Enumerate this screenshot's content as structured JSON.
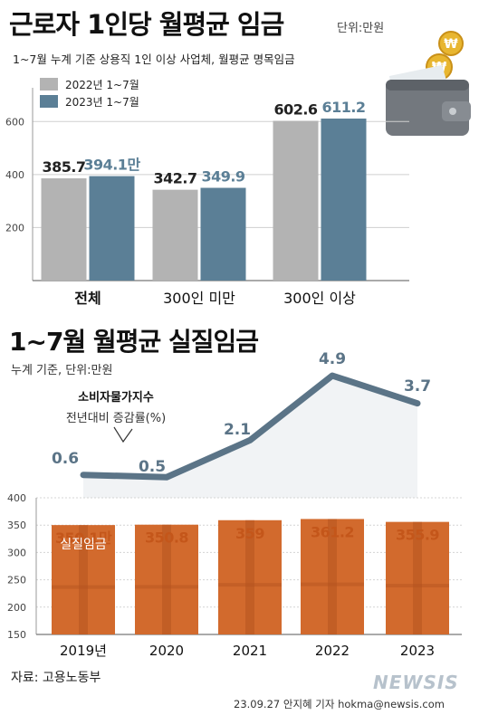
{
  "header": {
    "title": "근로자 1인당 월평균 임금",
    "unit": "단위:만원",
    "subtitle": "1~7월 누계 기준 상용직 1인 이상 사업체, 월평균 명목임금"
  },
  "section2": {
    "title": "1~7월 월평균 실질임금",
    "subtitle": "누계 기준, 단위:만원",
    "cpi_label_1": "소비자물가지수",
    "cpi_label_2": "전년대비 증감률(%)",
    "bar_label": "실질임금"
  },
  "footer": {
    "source": "자료: 고용노동부",
    "credit": "23.09.27 안지혜 기자 hokma@newsis.com",
    "logo": "NEWSIS"
  },
  "colors": {
    "series_2022": "#b3b3b3",
    "series_2023": "#5b7f96",
    "real_wage_bar": "#d26a2d",
    "real_wage_stripe": "#b4531f",
    "real_wage_value": "#c4561a",
    "cpi_line": "#5b7487"
  },
  "icons": [
    "wallet-icon",
    "won-coin-icon"
  ],
  "chart_data": [
    {
      "type": "bar",
      "title": "근로자 1인당 월평균 임금",
      "categories": [
        "전체",
        "300인 미만",
        "300인 이상"
      ],
      "series": [
        {
          "name": "2022년 1~7월",
          "values": [
            385.7,
            342.7,
            602.6
          ],
          "labels": [
            "385.7",
            "342.7",
            "602.6"
          ]
        },
        {
          "name": "2023년 1~7월",
          "values": [
            394.1,
            349.9,
            611.2
          ],
          "labels": [
            "394.1만",
            "349.9",
            "611.2"
          ]
        }
      ],
      "ylim": [
        0,
        700
      ],
      "yticks": [
        "200",
        "400",
        "600"
      ],
      "legend": "top-left"
    },
    {
      "type": "bar",
      "title": "1~7월 월평균 실질임금",
      "categories": [
        "2019년",
        "2020",
        "2021",
        "2022",
        "2023"
      ],
      "values": [
        350.1,
        350.8,
        359,
        361.2,
        355.9
      ],
      "labels": [
        "350.1만",
        "350.8",
        "359",
        "361.2",
        "355.9"
      ],
      "ylim": [
        150,
        400
      ],
      "yticks": [
        "400",
        "350",
        "300",
        "250",
        "200",
        "150"
      ]
    },
    {
      "type": "line",
      "name": "소비자물가지수 전년대비 증감률(%)",
      "x": [
        "2019",
        "2020",
        "2021",
        "2022",
        "2023"
      ],
      "values": [
        0.6,
        0.5,
        2.1,
        4.9,
        3.7
      ],
      "labels": [
        "0.6",
        "0.5",
        "2.1",
        "4.9",
        "3.7"
      ]
    }
  ]
}
